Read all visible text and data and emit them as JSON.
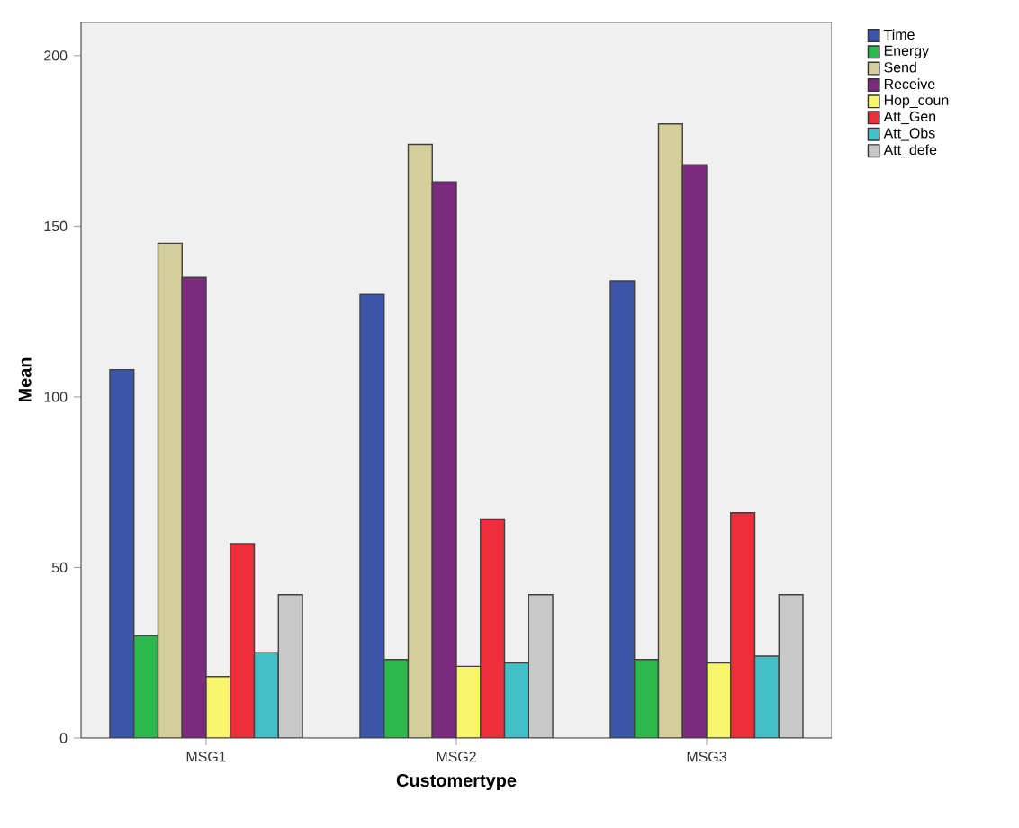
{
  "chart_data": {
    "type": "bar",
    "xlabel": "Customertype",
    "ylabel": "Mean",
    "categories": [
      "MSG1",
      "MSG2",
      "MSG3"
    ],
    "series": [
      {
        "name": "Time",
        "color": "#3b55a8",
        "values": [
          108,
          130,
          134
        ]
      },
      {
        "name": "Energy",
        "color": "#2db84d",
        "values": [
          30,
          23,
          23
        ]
      },
      {
        "name": "Send",
        "color": "#d4cf9a",
        "values": [
          145,
          174,
          180
        ]
      },
      {
        "name": "Receive",
        "color": "#7b2a7e",
        "values": [
          135,
          163,
          168
        ]
      },
      {
        "name": "Hop_coun",
        "color": "#f8f46c",
        "values": [
          18,
          21,
          22
        ]
      },
      {
        "name": "Att_Gen",
        "color": "#ec2f3a",
        "values": [
          57,
          64,
          66
        ]
      },
      {
        "name": "Att_Obs",
        "color": "#43c0c6",
        "values": [
          25,
          22,
          24
        ]
      },
      {
        "name": "Att_defe",
        "color": "#c8c8c8",
        "values": [
          42,
          42,
          42
        ]
      }
    ],
    "ylim": [
      0,
      210
    ],
    "yticks": [
      0,
      50,
      100,
      150,
      200
    ],
    "grid": false,
    "legend": "right"
  }
}
